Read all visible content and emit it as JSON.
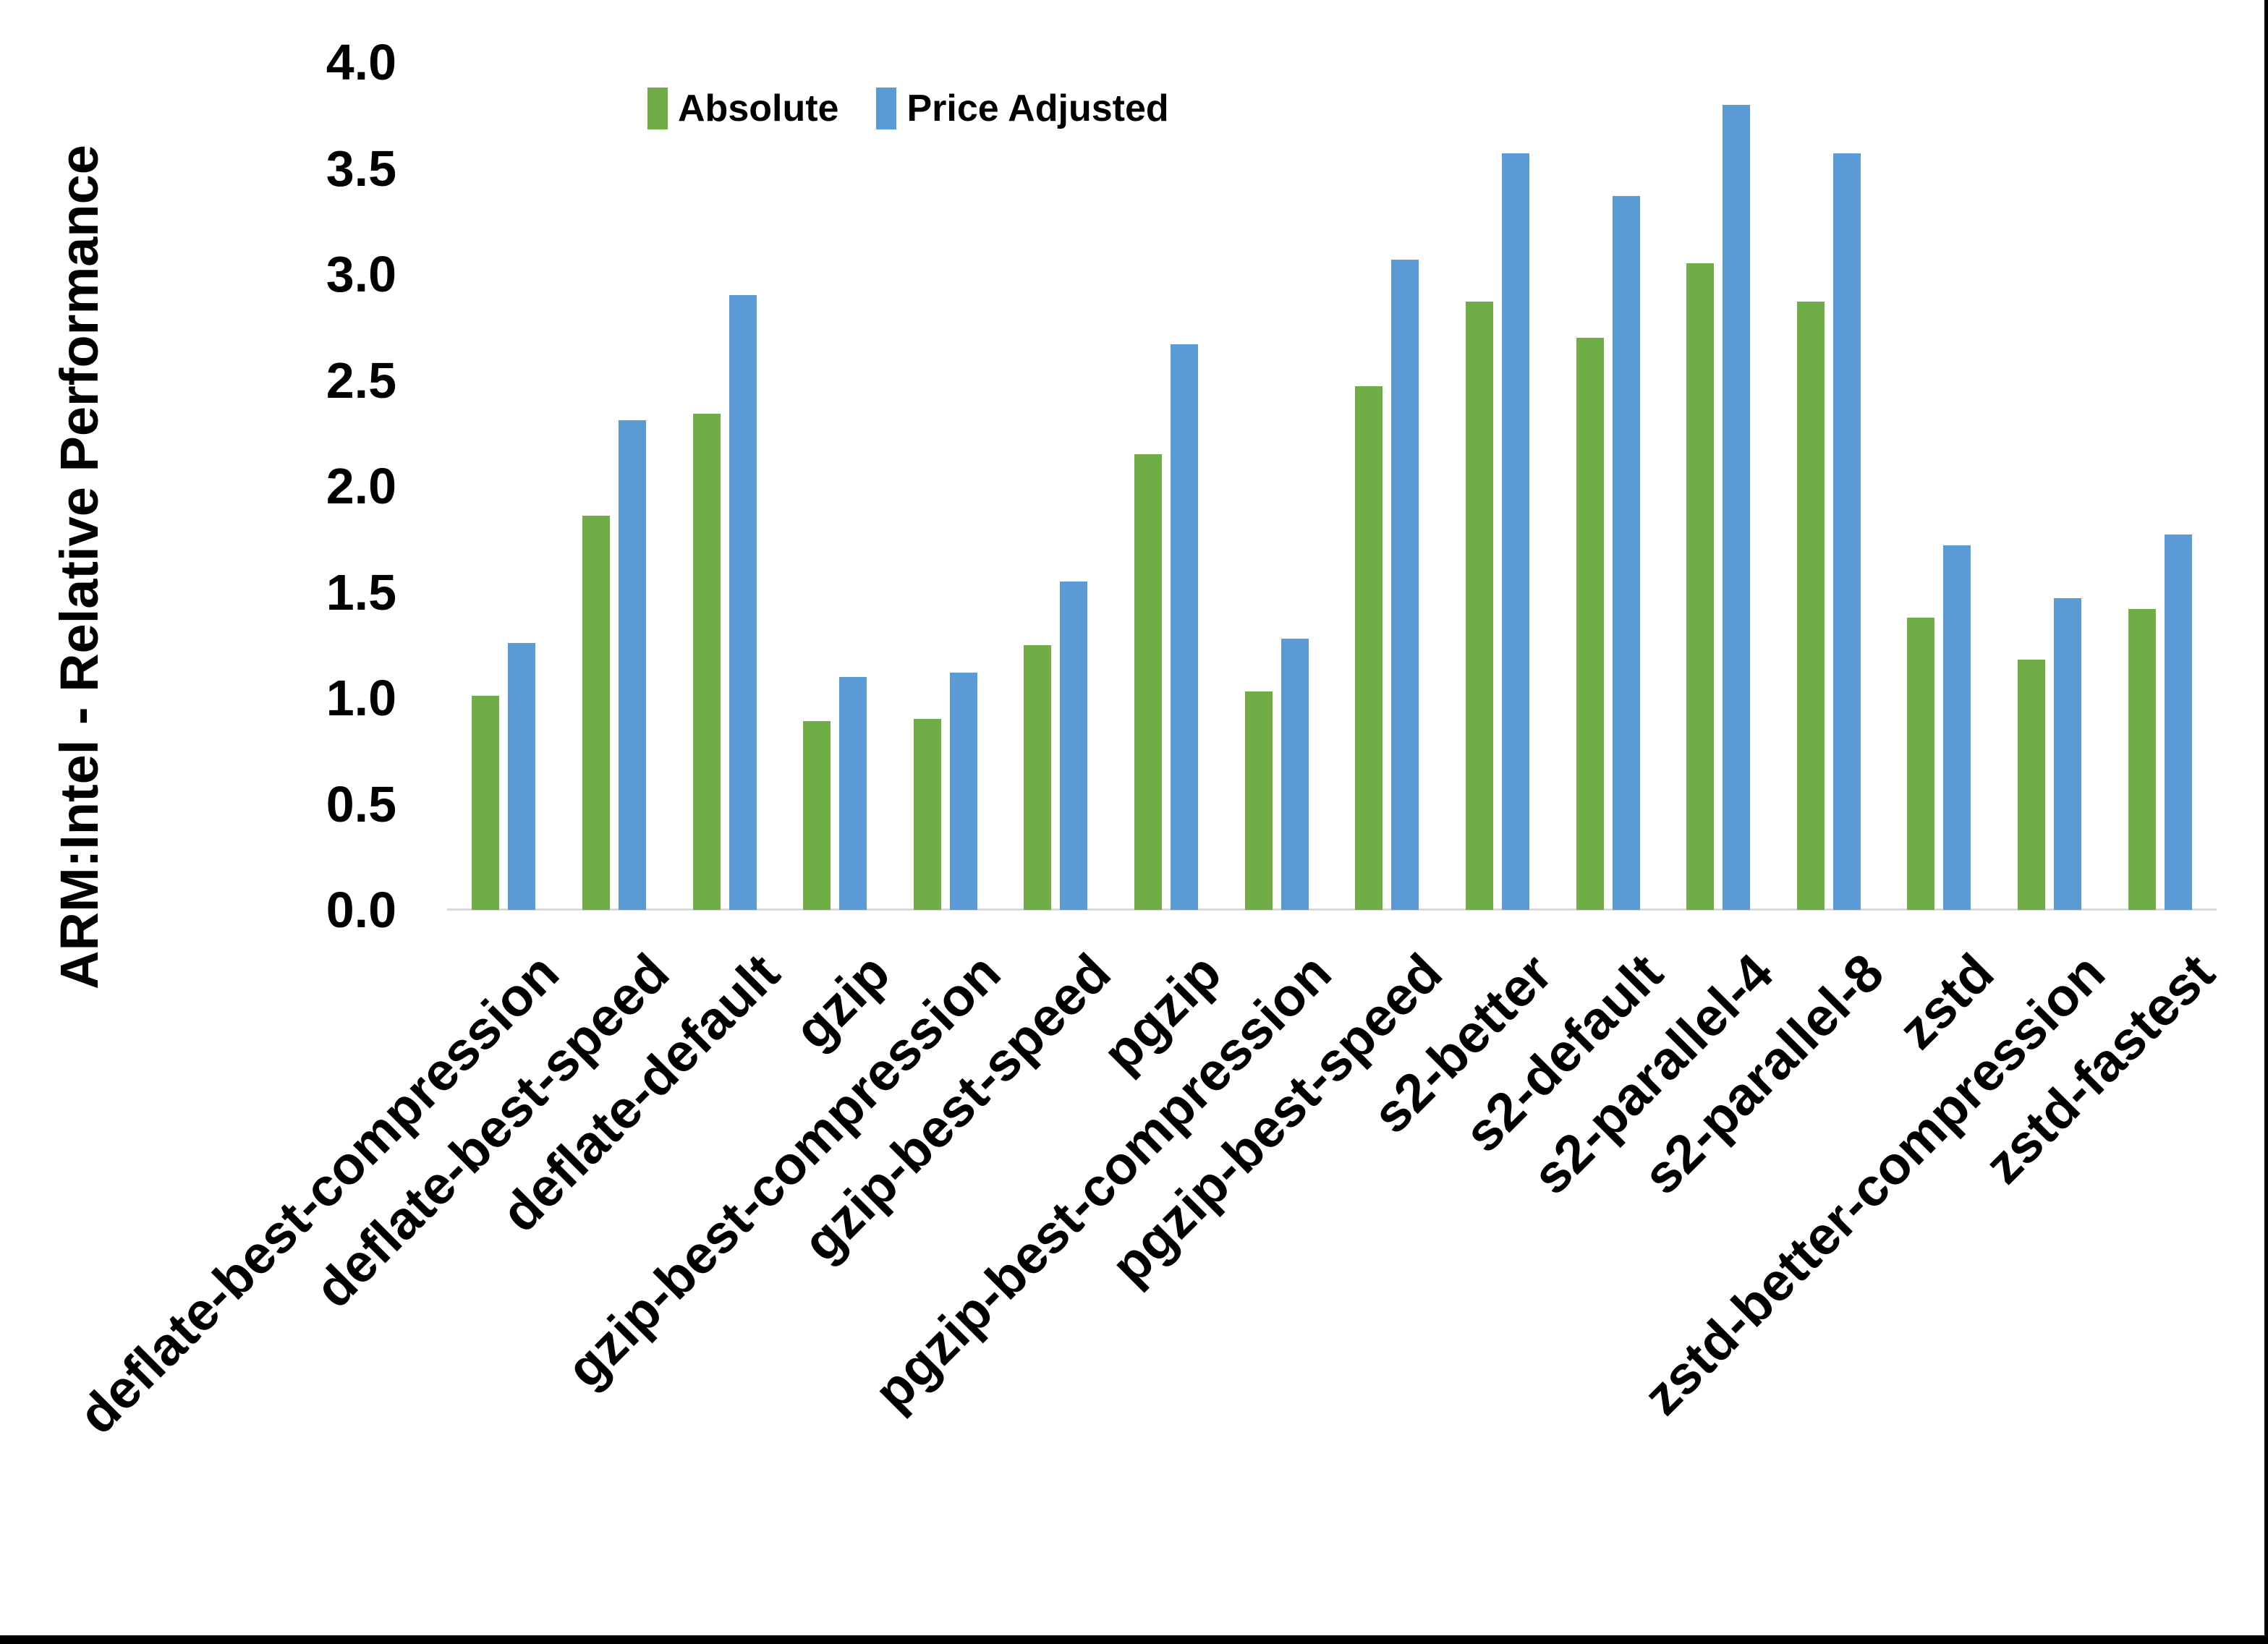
{
  "figure": {
    "background_color": "#FFFFFF",
    "text_color": "#000000",
    "axis_line_color": "#D9D9D9",
    "border_color": "#000000"
  },
  "legend": {
    "items": [
      {
        "label": "Absolute",
        "color": "#70AD47",
        "icon": "green-swatch"
      },
      {
        "label": "Price Adjusted",
        "color": "#5B9BD5",
        "icon": "blue-swatch"
      }
    ]
  },
  "chart_data": {
    "type": "bar",
    "title": "",
    "xlabel": "",
    "ylabel": "ARM:Intel - Relative Performance",
    "ylim": [
      0.0,
      4.0
    ],
    "ytick_step": 0.5,
    "y_tick_labels": [
      "0.0",
      "0.5",
      "1.0",
      "1.5",
      "2.0",
      "2.5",
      "3.0",
      "3.5",
      "4.0"
    ],
    "grid": false,
    "legend_position": "top",
    "x_label_rotation_deg": 45,
    "categories": [
      "deflate-best-compression",
      "deflate-best-speed",
      "deflate-default",
      "gzip",
      "gzip-best-compression",
      "gzip-best-speed",
      "pgzip",
      "pgzip-best-compression",
      "pgzip-best-speed",
      "s2-better",
      "s2-default",
      "s2-parallel-4",
      "s2-parallel-8",
      "zstd",
      "zstd-better-compression",
      "zstd-fastest"
    ],
    "series": [
      {
        "name": "Absolute",
        "color": "#70AD47",
        "values": [
          1.01,
          1.86,
          2.34,
          0.89,
          0.9,
          1.25,
          2.15,
          1.03,
          2.47,
          2.87,
          2.7,
          3.05,
          2.87,
          1.38,
          1.18,
          1.42
        ]
      },
      {
        "name": "Price Adjusted",
        "color": "#5B9BD5",
        "values": [
          1.26,
          2.31,
          2.9,
          1.1,
          1.12,
          1.55,
          2.67,
          1.28,
          3.07,
          3.57,
          3.37,
          3.8,
          3.57,
          1.72,
          1.47,
          1.77
        ]
      }
    ]
  }
}
